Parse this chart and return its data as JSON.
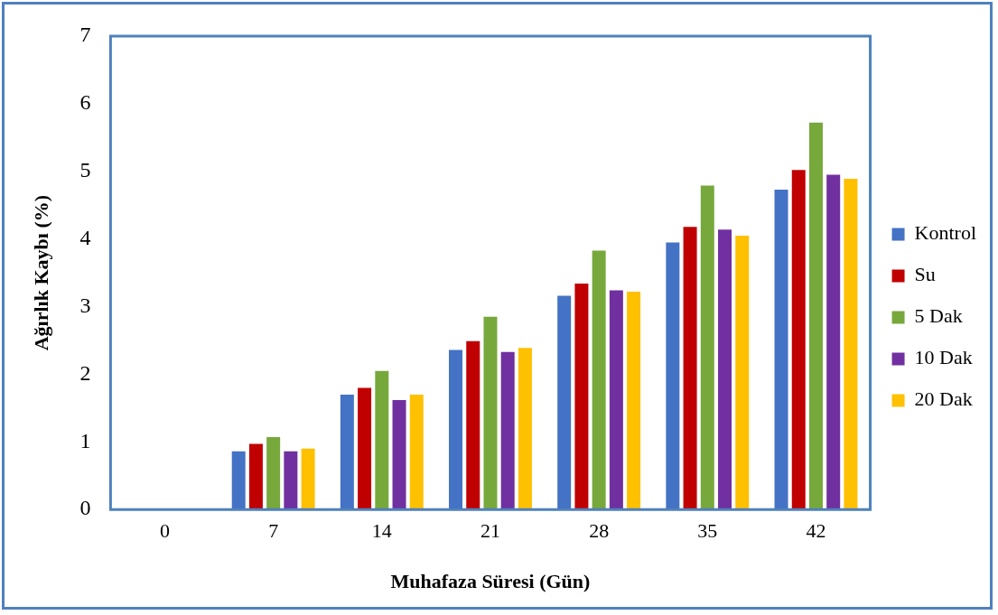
{
  "chart_data": {
    "type": "bar",
    "xlabel": "Muhafaza Süresi (Gün)",
    "ylabel": "Ağırlık Kaybı (%)",
    "categories": [
      "0",
      "7",
      "14",
      "21",
      "28",
      "35",
      "42"
    ],
    "series": [
      {
        "name": "Kontrol",
        "color": "#4472c4",
        "values": [
          0,
          0.86,
          1.7,
          2.36,
          3.16,
          3.95,
          4.73
        ]
      },
      {
        "name": "Su",
        "color": "#c00000",
        "values": [
          0,
          0.97,
          1.8,
          2.49,
          3.34,
          4.18,
          5.02
        ]
      },
      {
        "name": "5 Dak",
        "color": "#77a83c",
        "values": [
          0,
          1.07,
          2.05,
          2.85,
          3.83,
          4.79,
          5.72
        ]
      },
      {
        "name": "10 Dak",
        "color": "#7030a0",
        "values": [
          0,
          0.86,
          1.62,
          2.33,
          3.24,
          4.14,
          4.95
        ]
      },
      {
        "name": "20 Dak",
        "color": "#ffc000",
        "values": [
          0,
          0.9,
          1.7,
          2.39,
          3.22,
          4.05,
          4.89
        ]
      }
    ],
    "ylim": [
      0,
      7
    ],
    "yticks": [
      0,
      1,
      2,
      3,
      4,
      5,
      6,
      7
    ],
    "grid": false,
    "legend": "right"
  }
}
